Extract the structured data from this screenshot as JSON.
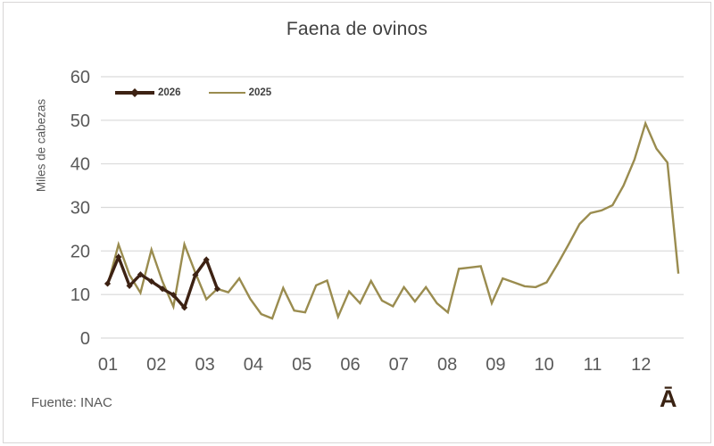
{
  "title": "Faena de ovinos",
  "source": "Fuente: INAC",
  "logo": "Ā",
  "colors": {
    "series_2026": "#3d2213",
    "series_2025": "#9a8c4f",
    "grid": "#d9d9d9",
    "axis_text": "#595959",
    "title_text": "#404040",
    "frame_border": "#d8d6d6",
    "logo_brown": "#3a2313"
  },
  "chart_data": {
    "type": "line",
    "title": "Faena de ovinos",
    "xlabel": "",
    "ylabel": "Miles de cabezas",
    "ylim": [
      0,
      60
    ],
    "y_ticks": [
      0,
      10,
      20,
      30,
      40,
      50,
      60
    ],
    "categories": [
      "01",
      "02",
      "03",
      "04",
      "05",
      "06",
      "07",
      "08",
      "09",
      "10",
      "11",
      "12"
    ],
    "x_unit": "weekly points, months 01-12 marked on axis",
    "grid": true,
    "legend_position": "top-left-inside",
    "series": [
      {
        "name": "2025",
        "color": "#9a8c4f",
        "marker": "none",
        "values": [
          12.0,
          21.5,
          14.5,
          10.4,
          20.3,
          13.0,
          7.2,
          21.5,
          15.0,
          8.9,
          11.3,
          10.5,
          13.7,
          9.0,
          5.5,
          4.5,
          11.5,
          6.3,
          5.9,
          12.1,
          13.2,
          4.9,
          10.7,
          8.0,
          13.1,
          8.6,
          7.3,
          11.7,
          8.4,
          11.7,
          8.0,
          5.9,
          15.9,
          16.2,
          16.5,
          8.0,
          13.7,
          12.8,
          11.9,
          11.7,
          12.8,
          17.0,
          21.5,
          26.2,
          28.7,
          29.3,
          30.5,
          35.0,
          41.0,
          49.3,
          43.5,
          40.3,
          14.8
        ]
      },
      {
        "name": "2026",
        "color": "#3d2213",
        "marker": "diamond",
        "values": [
          12.5,
          18.6,
          12.0,
          14.6,
          13.0,
          11.3,
          9.9,
          7.0,
          14.5,
          18.0,
          11.3
        ]
      }
    ]
  }
}
